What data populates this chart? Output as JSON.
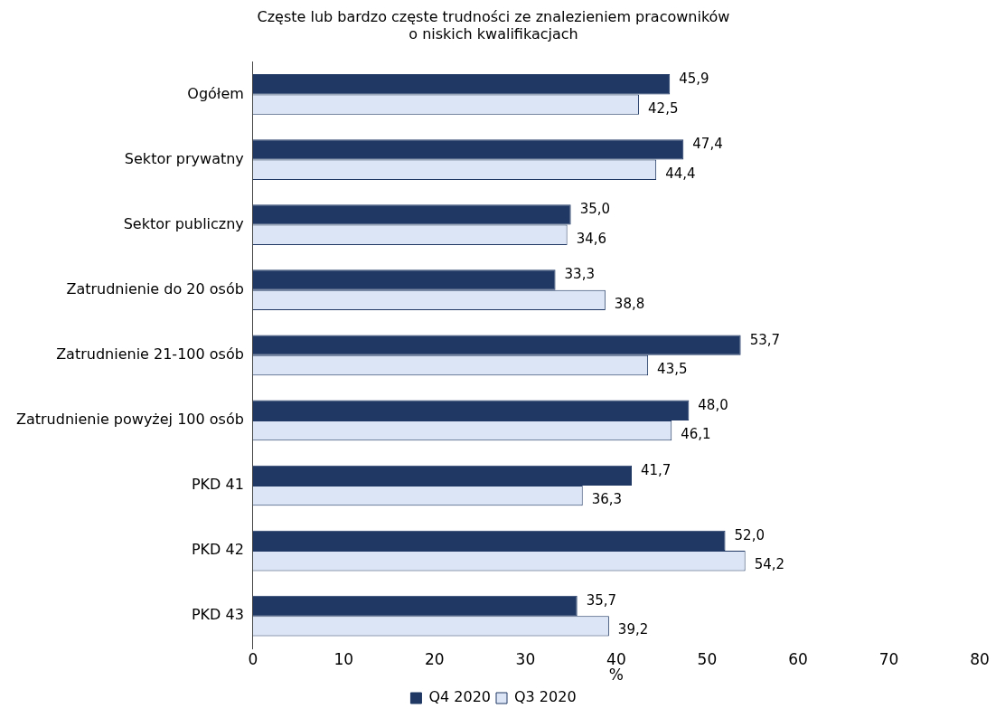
{
  "chart_data": {
    "type": "bar",
    "orientation": "horizontal",
    "title": [
      "Częste lub bardzo częste trudności ze znalezieniem pracowników",
      "o niskich kwalifikacjach"
    ],
    "categories": [
      "Ogółem",
      "Sektor prywatny",
      "Sektor publiczny",
      "Zatrudnienie do 20 osób",
      "Zatrudnienie 21-100 osób",
      "Zatrudnienie powyżej 100 osób",
      "PKD 41",
      "PKD 42",
      "PKD 43"
    ],
    "series": [
      {
        "name": "Q4 2020",
        "color": "#1f3864",
        "values": [
          45.9,
          47.4,
          35.0,
          33.3,
          53.7,
          48.0,
          41.7,
          52.0,
          35.7
        ],
        "value_labels": [
          "45,9",
          "47,4",
          "35,0",
          "33,3",
          "53,7",
          "48,0",
          "41,7",
          "52,0",
          "35,7"
        ]
      },
      {
        "name": "Q3 2020",
        "color": "#dbe5f5",
        "values": [
          42.5,
          44.4,
          34.6,
          38.8,
          43.5,
          46.1,
          36.3,
          54.2,
          39.2
        ],
        "value_labels": [
          "42,5",
          "44,4",
          "34,6",
          "38,8",
          "43,5",
          "46,1",
          "36,3",
          "54,2",
          "39,2"
        ]
      }
    ],
    "xlim": [
      0,
      80
    ],
    "xticks": [
      0,
      10,
      20,
      30,
      40,
      50,
      60,
      70,
      80
    ],
    "xlabel": "%",
    "grid": false,
    "legend": "bottom"
  }
}
